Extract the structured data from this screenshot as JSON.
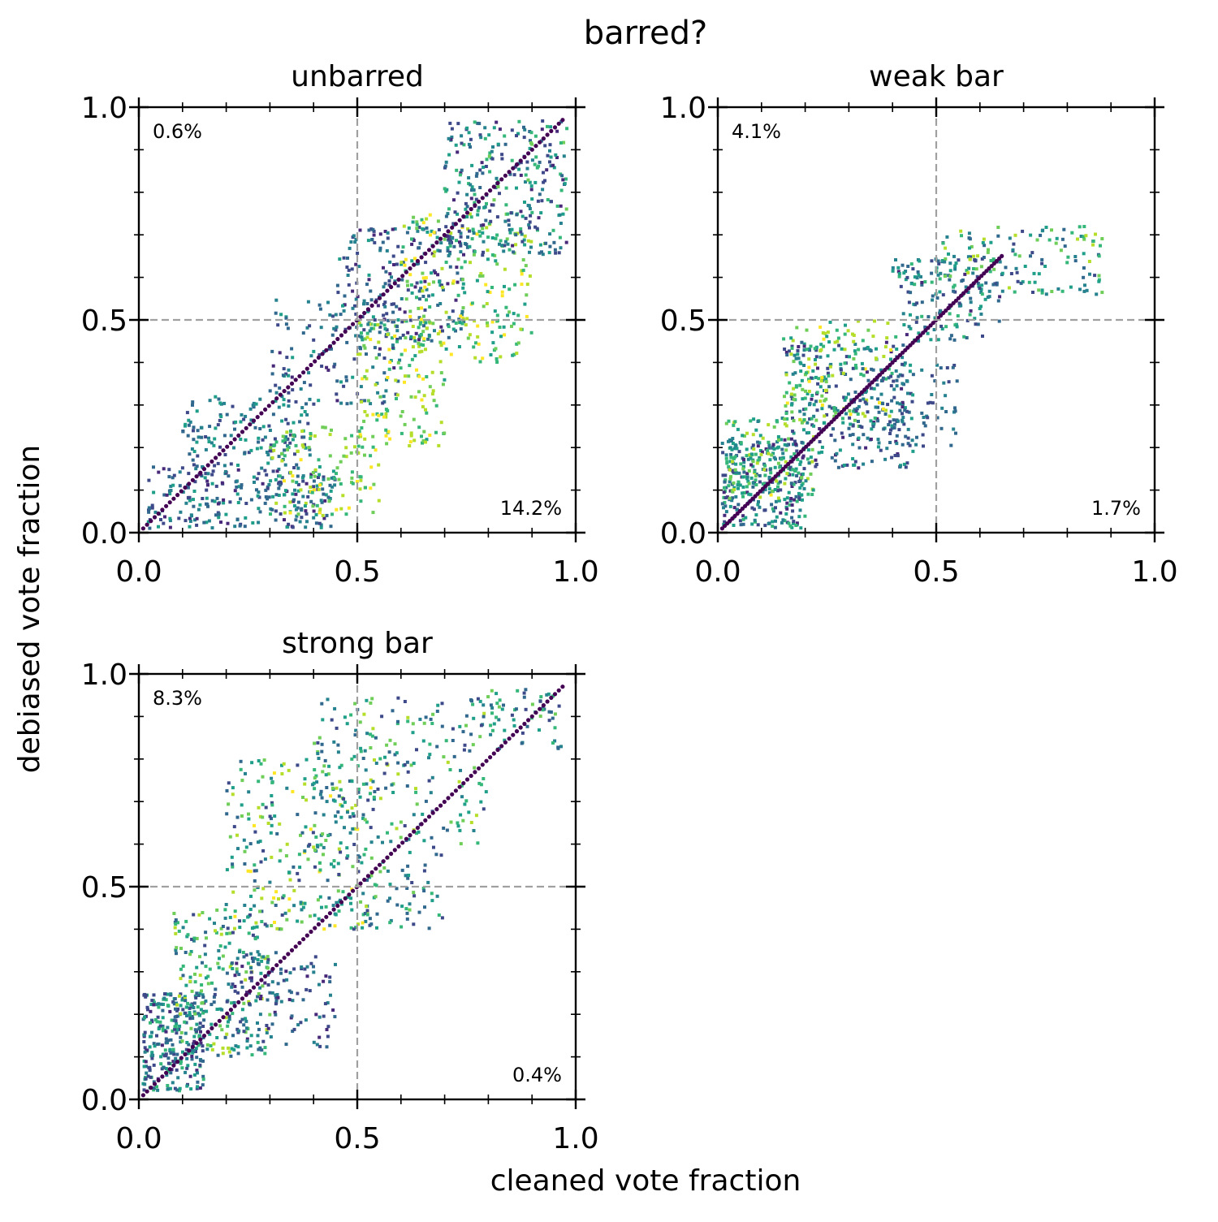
{
  "figure": {
    "suptitle": "barred?",
    "xlabel": "cleaned vote fraction",
    "ylabel": "debiased vote fraction"
  },
  "chart_data": [
    {
      "type": "scatter",
      "title": "unbarred",
      "xlim": [
        0,
        1
      ],
      "ylim": [
        0,
        1
      ],
      "xticks": [
        "0.0",
        "0.5",
        "1.0"
      ],
      "yticks": [
        "0.0",
        "0.5",
        "1.0"
      ],
      "reference_lines": {
        "x": 0.5,
        "y": 0.5,
        "style": "dashed",
        "color": "#a0a0a0"
      },
      "annotations": {
        "top_left": "0.6%",
        "bottom_right": "14.2%"
      },
      "colormap": "viridis",
      "diagonal": {
        "from": [
          0.01,
          0.01
        ],
        "to": [
          0.97,
          0.97
        ]
      },
      "clusters": [
        {
          "x": [
            0.02,
            0.45
          ],
          "y": [
            0.01,
            0.16
          ],
          "c": [
            0.1,
            0.6
          ],
          "n": 260
        },
        {
          "x": [
            0.1,
            0.4
          ],
          "y": [
            0.15,
            0.32
          ],
          "c": [
            0.2,
            0.6
          ],
          "n": 140
        },
        {
          "x": [
            0.3,
            0.55
          ],
          "y": [
            0.04,
            0.25
          ],
          "c": [
            0.6,
            1.0
          ],
          "n": 120
        },
        {
          "x": [
            0.3,
            0.6
          ],
          "y": [
            0.3,
            0.55
          ],
          "c": [
            0.15,
            0.55
          ],
          "n": 140
        },
        {
          "x": [
            0.5,
            0.7
          ],
          "y": [
            0.2,
            0.5
          ],
          "c": [
            0.6,
            1.0
          ],
          "n": 140
        },
        {
          "x": [
            0.45,
            0.75
          ],
          "y": [
            0.45,
            0.72
          ],
          "c": [
            0.1,
            0.55
          ],
          "n": 200
        },
        {
          "x": [
            0.6,
            0.9
          ],
          "y": [
            0.4,
            0.75
          ],
          "c": [
            0.55,
            1.0
          ],
          "n": 200
        },
        {
          "x": [
            0.7,
            0.98
          ],
          "y": [
            0.65,
            0.97
          ],
          "c": [
            0.1,
            0.75
          ],
          "n": 300
        }
      ]
    },
    {
      "type": "scatter",
      "title": "weak bar",
      "xlim": [
        0,
        1
      ],
      "ylim": [
        0,
        1
      ],
      "xticks": [
        "0.0",
        "0.5",
        "1.0"
      ],
      "yticks": [
        "0.0",
        "0.5",
        "1.0"
      ],
      "reference_lines": {
        "x": 0.5,
        "y": 0.5,
        "style": "dashed",
        "color": "#a0a0a0"
      },
      "annotations": {
        "top_left": "4.1%",
        "bottom_right": "1.7%"
      },
      "colormap": "viridis",
      "diagonal": {
        "from": [
          0.01,
          0.01
        ],
        "to": [
          0.65,
          0.65
        ]
      },
      "clusters": [
        {
          "x": [
            0.01,
            0.2
          ],
          "y": [
            0.01,
            0.22
          ],
          "c": [
            0.1,
            0.7
          ],
          "n": 260
        },
        {
          "x": [
            0.02,
            0.22
          ],
          "y": [
            0.08,
            0.27
          ],
          "c": [
            0.45,
            0.95
          ],
          "n": 140
        },
        {
          "x": [
            0.15,
            0.45
          ],
          "y": [
            0.15,
            0.45
          ],
          "c": [
            0.1,
            0.6
          ],
          "n": 240
        },
        {
          "x": [
            0.15,
            0.4
          ],
          "y": [
            0.25,
            0.5
          ],
          "c": [
            0.55,
            1.0
          ],
          "n": 150
        },
        {
          "x": [
            0.3,
            0.55
          ],
          "y": [
            0.2,
            0.4
          ],
          "c": [
            0.2,
            0.5
          ],
          "n": 100
        },
        {
          "x": [
            0.4,
            0.65
          ],
          "y": [
            0.45,
            0.65
          ],
          "c": [
            0.1,
            0.7
          ],
          "n": 150
        },
        {
          "x": [
            0.5,
            0.88
          ],
          "y": [
            0.56,
            0.72
          ],
          "c": [
            0.2,
            0.9
          ],
          "n": 140
        }
      ]
    },
    {
      "type": "scatter",
      "title": "strong bar",
      "xlim": [
        0,
        1
      ],
      "ylim": [
        0,
        1
      ],
      "xticks": [
        "0.0",
        "0.5",
        "1.0"
      ],
      "yticks": [
        "0.0",
        "0.5",
        "1.0"
      ],
      "reference_lines": {
        "x": 0.5,
        "y": 0.5,
        "style": "dashed",
        "color": "#a0a0a0"
      },
      "annotations": {
        "top_left": "8.3%",
        "bottom_right": "0.4%"
      },
      "colormap": "viridis",
      "diagonal": {
        "from": [
          0.01,
          0.01
        ],
        "to": [
          0.97,
          0.97
        ]
      },
      "clusters": [
        {
          "x": [
            0.01,
            0.15
          ],
          "y": [
            0.02,
            0.25
          ],
          "c": [
            0.1,
            0.7
          ],
          "n": 260
        },
        {
          "x": [
            0.08,
            0.3
          ],
          "y": [
            0.1,
            0.45
          ],
          "c": [
            0.2,
            0.9
          ],
          "n": 240
        },
        {
          "x": [
            0.2,
            0.45
          ],
          "y": [
            0.12,
            0.35
          ],
          "c": [
            0.1,
            0.5
          ],
          "n": 120
        },
        {
          "x": [
            0.2,
            0.55
          ],
          "y": [
            0.4,
            0.8
          ],
          "c": [
            0.2,
            1.0
          ],
          "n": 240
        },
        {
          "x": [
            0.4,
            0.8
          ],
          "y": [
            0.6,
            0.95
          ],
          "c": [
            0.2,
            0.9
          ],
          "n": 220
        },
        {
          "x": [
            0.4,
            0.7
          ],
          "y": [
            0.4,
            0.6
          ],
          "c": [
            0.2,
            0.8
          ],
          "n": 90
        },
        {
          "x": [
            0.8,
            0.97
          ],
          "y": [
            0.82,
            0.97
          ],
          "c": [
            0.2,
            0.8
          ],
          "n": 60
        }
      ]
    }
  ]
}
